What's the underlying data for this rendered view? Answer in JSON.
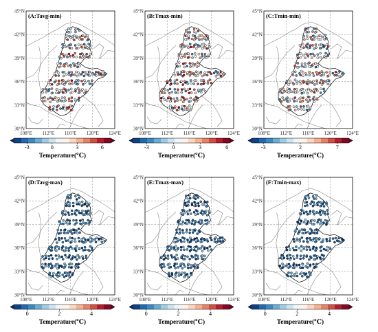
{
  "figure": {
    "panels": [
      {
        "title": "(A:Tavg-min)",
        "lat_labels": [
          "45°N",
          "42°N",
          "39°N",
          "36°N",
          "33°N",
          "30°N"
        ],
        "lon_labels": [
          "108°E",
          "112°E",
          "116°E",
          "120°E",
          "124°E"
        ],
        "colorbar": {
          "label": "Temperature(℃)",
          "ticks": [
            "-3",
            "0",
            "3",
            "6"
          ],
          "vmin": -4.5,
          "vmax": 7
        },
        "station_range": [
          -3,
          6
        ]
      },
      {
        "title": "(B:Tmax-min)",
        "lat_labels": [
          "45°N",
          "42°N",
          "39°N",
          "36°N",
          "33°N",
          "30°N"
        ],
        "lon_labels": [
          "108°E",
          "112°E",
          "116°E",
          "120°E",
          "124°E"
        ],
        "colorbar": {
          "label": "Temperature(℃)",
          "ticks": [
            "-3",
            "0",
            "3",
            "6"
          ],
          "vmin": -4.5,
          "vmax": 6.3
        },
        "station_range": [
          -3,
          6
        ]
      },
      {
        "title": "(C:Tmin-min)",
        "lat_labels": [
          "45°N",
          "42°N",
          "39°N",
          "36°N",
          "33°N",
          "30°N"
        ],
        "lon_labels": [
          "108°E",
          "112°E",
          "116°E",
          "120°E",
          "124°E"
        ],
        "colorbar": {
          "label": "Temperature(℃)",
          "ticks": [
            "-3",
            "2",
            "7"
          ],
          "vmin": -4.5,
          "vmax": 8.5
        },
        "station_range": [
          -3,
          7
        ]
      },
      {
        "title": "(D:Tavg-max)",
        "lat_labels": [
          "45°N",
          "42°N",
          "39°N",
          "36°N",
          "33°N",
          "30°N"
        ],
        "lon_labels": [
          "108°E",
          "112°E",
          "116°E",
          "120°E",
          "124°E"
        ],
        "colorbar": {
          "label": "Temperature(℃)",
          "ticks": [
            "0",
            "2",
            "4"
          ],
          "vmin": -0.8,
          "vmax": 5.2
        },
        "station_range": [
          -0.8,
          1.2
        ]
      },
      {
        "title": "(E:Tmax-max)",
        "lat_labels": [
          "45°N",
          "42°N",
          "39°N",
          "36°N",
          "33°N",
          "30°N"
        ],
        "lon_labels": [
          "108°E",
          "112°E",
          "116°E",
          "120°E",
          "124°E"
        ],
        "colorbar": {
          "label": "Temperature(℃)",
          "ticks": [
            "0",
            "2",
            "4"
          ],
          "vmin": -0.8,
          "vmax": 5.2
        },
        "station_range": [
          -0.8,
          1.2
        ]
      },
      {
        "title": "(F:Tmin-max)",
        "lat_labels": [
          "45°N",
          "42°N",
          "39°N",
          "36°N",
          "33°N",
          "30°N"
        ],
        "lon_labels": [
          "108°E",
          "112°E",
          "116°E",
          "120°E",
          "124°E"
        ],
        "colorbar": {
          "label": "Temperature(℃)",
          "ticks": [
            "0",
            "2",
            "4"
          ],
          "vmin": -0.8,
          "vmax": 5.2
        },
        "station_range": [
          -0.8,
          1.2
        ]
      }
    ],
    "colormap": [
      "#08306b",
      "#2166ac",
      "#4393c3",
      "#92c5de",
      "#d1e5f0",
      "#ffffff",
      "#fddbc7",
      "#f4a582",
      "#d6604d",
      "#b2182b",
      "#67001f"
    ],
    "colors": {
      "grid": "#9a9a9a",
      "boundary": "#7a7a7a",
      "region_outline": "#000000",
      "station_edge": "#000000"
    }
  }
}
